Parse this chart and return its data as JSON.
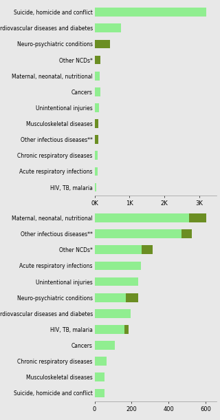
{
  "syria": {
    "categories": [
      "Suicide, homicide and conflict",
      "Cardiovascular diseases and diabetes",
      "Neuro-psychiatric conditions",
      "Other NCDs*",
      "Maternal, neonatal, nutritional",
      "Cancers",
      "Unintentional injuries",
      "Musculoskeletal diseases",
      "Other infectious diseases**",
      "Chronic respiratory diseases",
      "Acute respiratory infections",
      "HIV, TB, malaria"
    ],
    "values": [
      3200,
      750,
      450,
      165,
      145,
      170,
      130,
      110,
      100,
      90,
      80,
      50
    ],
    "bar_colors": [
      "#90EE90",
      "#90EE90",
      "#6B8E23",
      "#6B8E23",
      "#90EE90",
      "#90EE90",
      "#90EE90",
      "#6B8E23",
      "#6B8E23",
      "#90EE90",
      "#90EE90",
      "#90EE90"
    ],
    "xlim": [
      0,
      3500
    ],
    "xticks": [
      0,
      1000,
      2000,
      3000
    ],
    "xticklabels": [
      "0K",
      "1K",
      "2K",
      "3K"
    ]
  },
  "eritrea": {
    "categories": [
      "Maternal, neonatal, nutritional",
      "Other infectious diseases**",
      "Other NCDs*",
      "Acute respiratory infections",
      "Unintentional injuries",
      "Neuro-psychiatric conditions",
      "Cardiovascular diseases and diabetes",
      "HIV, TB, malaria",
      "Cancers",
      "Chronic respiratory diseases",
      "Musculoskeletal diseases",
      "Suicide, homicide and conflict"
    ],
    "values_light": [
      510,
      470,
      255,
      250,
      235,
      170,
      195,
      160,
      110,
      65,
      55,
      55
    ],
    "values_dark": [
      95,
      55,
      60,
      0,
      0,
      65,
      0,
      25,
      0,
      0,
      0,
      0
    ],
    "color_light": "#90EE90",
    "color_dark": "#6B8E23",
    "xlim": [
      0,
      660
    ],
    "xticks": [
      0,
      200,
      400,
      600
    ],
    "xticklabels": [
      "0",
      "200",
      "400",
      "600"
    ]
  },
  "bg_color": "#E8E8E8",
  "label_fontsize": 5.5,
  "tick_fontsize": 6.0,
  "bar_height": 0.55
}
